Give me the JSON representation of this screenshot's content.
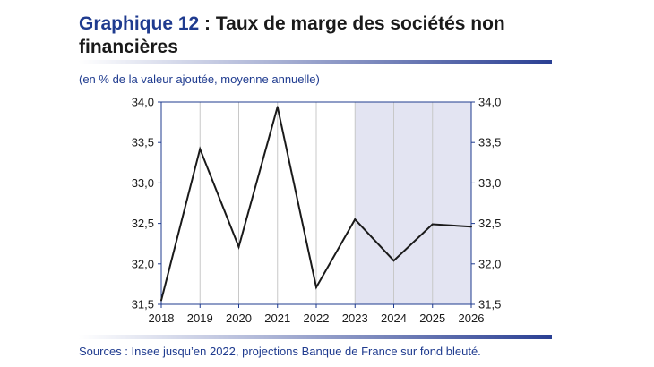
{
  "title": {
    "prefix": "Graphique 12",
    "text": " : Taux de marge des sociétés non financières"
  },
  "subtitle": "(en % de la valeur ajoutée, moyenne annuelle)",
  "source": "Sources : Insee jusqu’en 2022, projections Banque de France sur fond bleuté.",
  "colors": {
    "title_accent": "#1f3b8f",
    "line": "#1a1a1a",
    "projection_band": "#e3e4f2",
    "axis": "#1f3b8f",
    "grid": "#c8c8c8"
  },
  "chart_data": {
    "type": "line",
    "x": [
      "2018",
      "2019",
      "2020",
      "2021",
      "2022",
      "2023",
      "2024",
      "2025",
      "2026"
    ],
    "series": [
      {
        "values": [
          31.55,
          33.42,
          32.21,
          33.94,
          31.71,
          32.55,
          32.04,
          32.49,
          32.46
        ]
      }
    ],
    "ylim": [
      31.5,
      34.0
    ],
    "y_ticks": [
      "31,5",
      "32,0",
      "32,5",
      "33,0",
      "33,5",
      "34,0"
    ],
    "y_tick_values": [
      31.5,
      32.0,
      32.5,
      33.0,
      33.5,
      34.0
    ],
    "projection_range": [
      "2023",
      "2026"
    ],
    "dual_y_axis": true,
    "grid": "vertical"
  }
}
